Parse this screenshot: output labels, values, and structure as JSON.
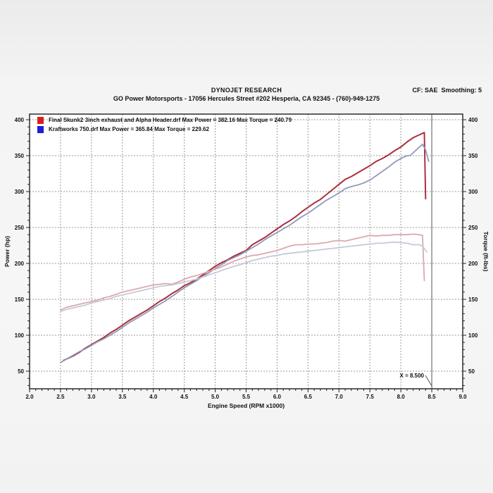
{
  "header": {
    "title": "DYNOJET RESEARCH",
    "subtitle": "GO Power Motorsports - 17056 Hercules Street #202 Hesperia, CA 92345 - (760)-949-1275",
    "correction": "CF: SAE  Smoothing: 5"
  },
  "legend": [
    {
      "label": "Final Skunk2 3inch exhaust and Alpha Header.drf Max Power = 382.16 Max Torque = 240.79",
      "color": "#d81e1e"
    },
    {
      "label": "Kraftworks 750.drf Max Power = 365.84 Max Torque = 229.62",
      "color": "#1e1ed8"
    }
  ],
  "cursor": {
    "label": "X = 8.500",
    "x": 8.5
  },
  "chart_data": {
    "type": "line",
    "title": "",
    "xlabel": "Engine Speed (RPM x1000)",
    "ylabel_left": "Power (hp)",
    "ylabel_right": "Torque (ft-lbs)",
    "xlim": [
      2.0,
      9.0
    ],
    "ylim": [
      25,
      408
    ],
    "x_ticks": [
      "2.0",
      "2.5",
      "3.0",
      "3.5",
      "4.0",
      "4.5",
      "5.0",
      "5.5",
      "6.0",
      "6.5",
      "7.0",
      "7.5",
      "8.0",
      "8.5",
      "9.0"
    ],
    "y_ticks": [
      400,
      350,
      300,
      250,
      200,
      150,
      100,
      50
    ],
    "grid": "dashed",
    "legend_position": "top-left",
    "series": [
      {
        "name": "Final Skunk2 3inch exhaust and Alpha Header.drf Power (hp)",
        "max": 382.16,
        "color": "#ab303d",
        "width": 2,
        "points": [
          [
            2.55,
            65
          ],
          [
            2.7,
            71
          ],
          [
            2.8,
            76
          ],
          [
            2.9,
            82
          ],
          [
            3.0,
            87
          ],
          [
            3.1,
            92
          ],
          [
            3.2,
            97
          ],
          [
            3.3,
            103
          ],
          [
            3.4,
            108
          ],
          [
            3.5,
            114
          ],
          [
            3.6,
            120
          ],
          [
            3.7,
            125
          ],
          [
            3.8,
            130
          ],
          [
            3.9,
            135
          ],
          [
            4.0,
            141
          ],
          [
            4.1,
            147
          ],
          [
            4.2,
            152
          ],
          [
            4.3,
            158
          ],
          [
            4.4,
            163
          ],
          [
            4.5,
            169
          ],
          [
            4.6,
            173
          ],
          [
            4.7,
            178
          ],
          [
            4.8,
            184
          ],
          [
            4.9,
            190
          ],
          [
            5.0,
            196
          ],
          [
            5.1,
            201
          ],
          [
            5.2,
            205
          ],
          [
            5.3,
            210
          ],
          [
            5.4,
            214
          ],
          [
            5.5,
            218
          ],
          [
            5.6,
            226
          ],
          [
            5.7,
            231
          ],
          [
            5.8,
            236
          ],
          [
            5.9,
            242
          ],
          [
            6.0,
            248
          ],
          [
            6.1,
            254
          ],
          [
            6.2,
            259
          ],
          [
            6.3,
            265
          ],
          [
            6.4,
            272
          ],
          [
            6.5,
            278
          ],
          [
            6.6,
            284
          ],
          [
            6.7,
            289
          ],
          [
            6.8,
            296
          ],
          [
            6.9,
            303
          ],
          [
            7.0,
            310
          ],
          [
            7.1,
            317
          ],
          [
            7.2,
            321
          ],
          [
            7.3,
            326
          ],
          [
            7.4,
            331
          ],
          [
            7.5,
            336
          ],
          [
            7.6,
            342
          ],
          [
            7.7,
            346
          ],
          [
            7.8,
            351
          ],
          [
            7.9,
            357
          ],
          [
            8.0,
            362
          ],
          [
            8.1,
            369
          ],
          [
            8.2,
            375
          ],
          [
            8.3,
            379
          ],
          [
            8.35,
            381
          ],
          [
            8.38,
            382.16
          ],
          [
            8.4,
            290
          ]
        ]
      },
      {
        "name": "Kraftworks 750.drf Power (hp)",
        "max": 365.84,
        "color": "#8f9ab8",
        "width": 1.8,
        "points": [
          [
            2.5,
            62
          ],
          [
            2.6,
            67
          ],
          [
            2.7,
            72
          ],
          [
            2.8,
            77
          ],
          [
            2.9,
            81
          ],
          [
            3.0,
            86
          ],
          [
            3.1,
            91
          ],
          [
            3.2,
            95
          ],
          [
            3.3,
            100
          ],
          [
            3.4,
            105
          ],
          [
            3.5,
            111
          ],
          [
            3.6,
            117
          ],
          [
            3.7,
            122
          ],
          [
            3.8,
            127
          ],
          [
            3.9,
            132
          ],
          [
            4.0,
            138
          ],
          [
            4.1,
            143
          ],
          [
            4.2,
            148
          ],
          [
            4.3,
            154
          ],
          [
            4.4,
            160
          ],
          [
            4.5,
            166
          ],
          [
            4.6,
            171
          ],
          [
            4.7,
            176
          ],
          [
            4.8,
            182
          ],
          [
            4.9,
            187
          ],
          [
            5.0,
            193
          ],
          [
            5.1,
            198
          ],
          [
            5.2,
            204
          ],
          [
            5.3,
            208
          ],
          [
            5.4,
            212
          ],
          [
            5.5,
            217
          ],
          [
            5.6,
            222
          ],
          [
            5.7,
            227
          ],
          [
            5.8,
            233
          ],
          [
            5.9,
            238
          ],
          [
            6.0,
            243
          ],
          [
            6.1,
            248
          ],
          [
            6.2,
            253
          ],
          [
            6.3,
            259
          ],
          [
            6.4,
            265
          ],
          [
            6.5,
            270
          ],
          [
            6.6,
            276
          ],
          [
            6.7,
            282
          ],
          [
            6.8,
            288
          ],
          [
            6.9,
            293
          ],
          [
            7.0,
            298
          ],
          [
            7.1,
            304
          ],
          [
            7.2,
            307
          ],
          [
            7.3,
            309
          ],
          [
            7.4,
            312
          ],
          [
            7.5,
            316
          ],
          [
            7.6,
            322
          ],
          [
            7.7,
            328
          ],
          [
            7.8,
            334
          ],
          [
            7.9,
            341
          ],
          [
            8.0,
            346
          ],
          [
            8.1,
            350
          ],
          [
            8.15,
            350
          ],
          [
            8.2,
            354
          ],
          [
            8.3,
            362
          ],
          [
            8.35,
            365.84
          ],
          [
            8.4,
            358
          ],
          [
            8.45,
            342
          ]
        ]
      },
      {
        "name": "Final Skunk2 3inch exhaust and Alpha Header.drf Torque (ft-lbs)",
        "max": 240.79,
        "color": "#dca9ad",
        "width": 1.8,
        "points": [
          [
            2.5,
            135
          ],
          [
            2.6,
            139
          ],
          [
            2.7,
            141
          ],
          [
            2.8,
            143
          ],
          [
            2.9,
            145
          ],
          [
            3.0,
            147
          ],
          [
            3.1,
            149
          ],
          [
            3.2,
            152
          ],
          [
            3.3,
            154
          ],
          [
            3.4,
            157
          ],
          [
            3.5,
            160
          ],
          [
            3.6,
            162
          ],
          [
            3.7,
            164
          ],
          [
            3.8,
            166
          ],
          [
            3.9,
            168
          ],
          [
            4.0,
            170
          ],
          [
            4.1,
            171
          ],
          [
            4.2,
            172
          ],
          [
            4.3,
            171
          ],
          [
            4.4,
            174
          ],
          [
            4.5,
            178
          ],
          [
            4.6,
            181
          ],
          [
            4.7,
            183
          ],
          [
            4.8,
            186
          ],
          [
            4.9,
            189
          ],
          [
            5.0,
            192
          ],
          [
            5.1,
            195
          ],
          [
            5.2,
            199
          ],
          [
            5.3,
            203
          ],
          [
            5.4,
            206
          ],
          [
            5.5,
            209
          ],
          [
            5.6,
            211
          ],
          [
            5.7,
            212
          ],
          [
            5.8,
            214
          ],
          [
            5.9,
            216
          ],
          [
            6.0,
            218
          ],
          [
            6.1,
            221
          ],
          [
            6.2,
            224
          ],
          [
            6.3,
            226
          ],
          [
            6.4,
            226
          ],
          [
            6.5,
            227
          ],
          [
            6.6,
            227
          ],
          [
            6.7,
            228
          ],
          [
            6.8,
            229
          ],
          [
            6.9,
            231
          ],
          [
            7.0,
            232
          ],
          [
            7.1,
            231
          ],
          [
            7.2,
            233
          ],
          [
            7.3,
            235
          ],
          [
            7.4,
            237
          ],
          [
            7.5,
            239
          ],
          [
            7.6,
            238
          ],
          [
            7.7,
            239
          ],
          [
            7.8,
            239
          ],
          [
            7.9,
            240
          ],
          [
            8.0,
            240
          ],
          [
            8.1,
            240
          ],
          [
            8.2,
            240.79
          ],
          [
            8.3,
            240
          ],
          [
            8.35,
            239
          ],
          [
            8.38,
            176
          ]
        ]
      },
      {
        "name": "Kraftworks 750.drf Torque (ft-lbs)",
        "max": 229.62,
        "color": "#c5cad8",
        "width": 1.8,
        "points": [
          [
            2.5,
            133
          ],
          [
            2.6,
            136
          ],
          [
            2.7,
            138
          ],
          [
            2.8,
            140
          ],
          [
            2.9,
            142
          ],
          [
            3.0,
            145
          ],
          [
            3.1,
            147
          ],
          [
            3.2,
            149
          ],
          [
            3.3,
            151
          ],
          [
            3.4,
            154
          ],
          [
            3.5,
            156
          ],
          [
            3.6,
            158
          ],
          [
            3.7,
            160
          ],
          [
            3.8,
            162
          ],
          [
            3.9,
            164
          ],
          [
            4.0,
            166
          ],
          [
            4.1,
            168
          ],
          [
            4.2,
            169
          ],
          [
            4.3,
            170
          ],
          [
            4.4,
            172
          ],
          [
            4.5,
            174
          ],
          [
            4.6,
            176
          ],
          [
            4.7,
            178
          ],
          [
            4.8,
            181
          ],
          [
            4.9,
            184
          ],
          [
            5.0,
            187
          ],
          [
            5.1,
            190
          ],
          [
            5.2,
            193
          ],
          [
            5.3,
            196
          ],
          [
            5.4,
            198
          ],
          [
            5.5,
            201
          ],
          [
            5.6,
            204
          ],
          [
            5.7,
            206
          ],
          [
            5.8,
            208
          ],
          [
            5.9,
            210
          ],
          [
            6.0,
            211
          ],
          [
            6.1,
            213
          ],
          [
            6.2,
            214
          ],
          [
            6.3,
            215
          ],
          [
            6.4,
            216
          ],
          [
            6.5,
            217
          ],
          [
            6.6,
            218
          ],
          [
            6.7,
            219
          ],
          [
            6.8,
            220
          ],
          [
            6.9,
            221
          ],
          [
            7.0,
            222
          ],
          [
            7.1,
            223
          ],
          [
            7.2,
            224
          ],
          [
            7.3,
            225
          ],
          [
            7.4,
            226
          ],
          [
            7.5,
            227
          ],
          [
            7.6,
            228
          ],
          [
            7.7,
            228
          ],
          [
            7.8,
            229
          ],
          [
            7.9,
            229.62
          ],
          [
            8.0,
            229
          ],
          [
            8.1,
            228
          ],
          [
            8.2,
            226
          ],
          [
            8.3,
            226
          ],
          [
            8.35,
            224
          ],
          [
            8.42,
            216
          ]
        ]
      }
    ]
  }
}
